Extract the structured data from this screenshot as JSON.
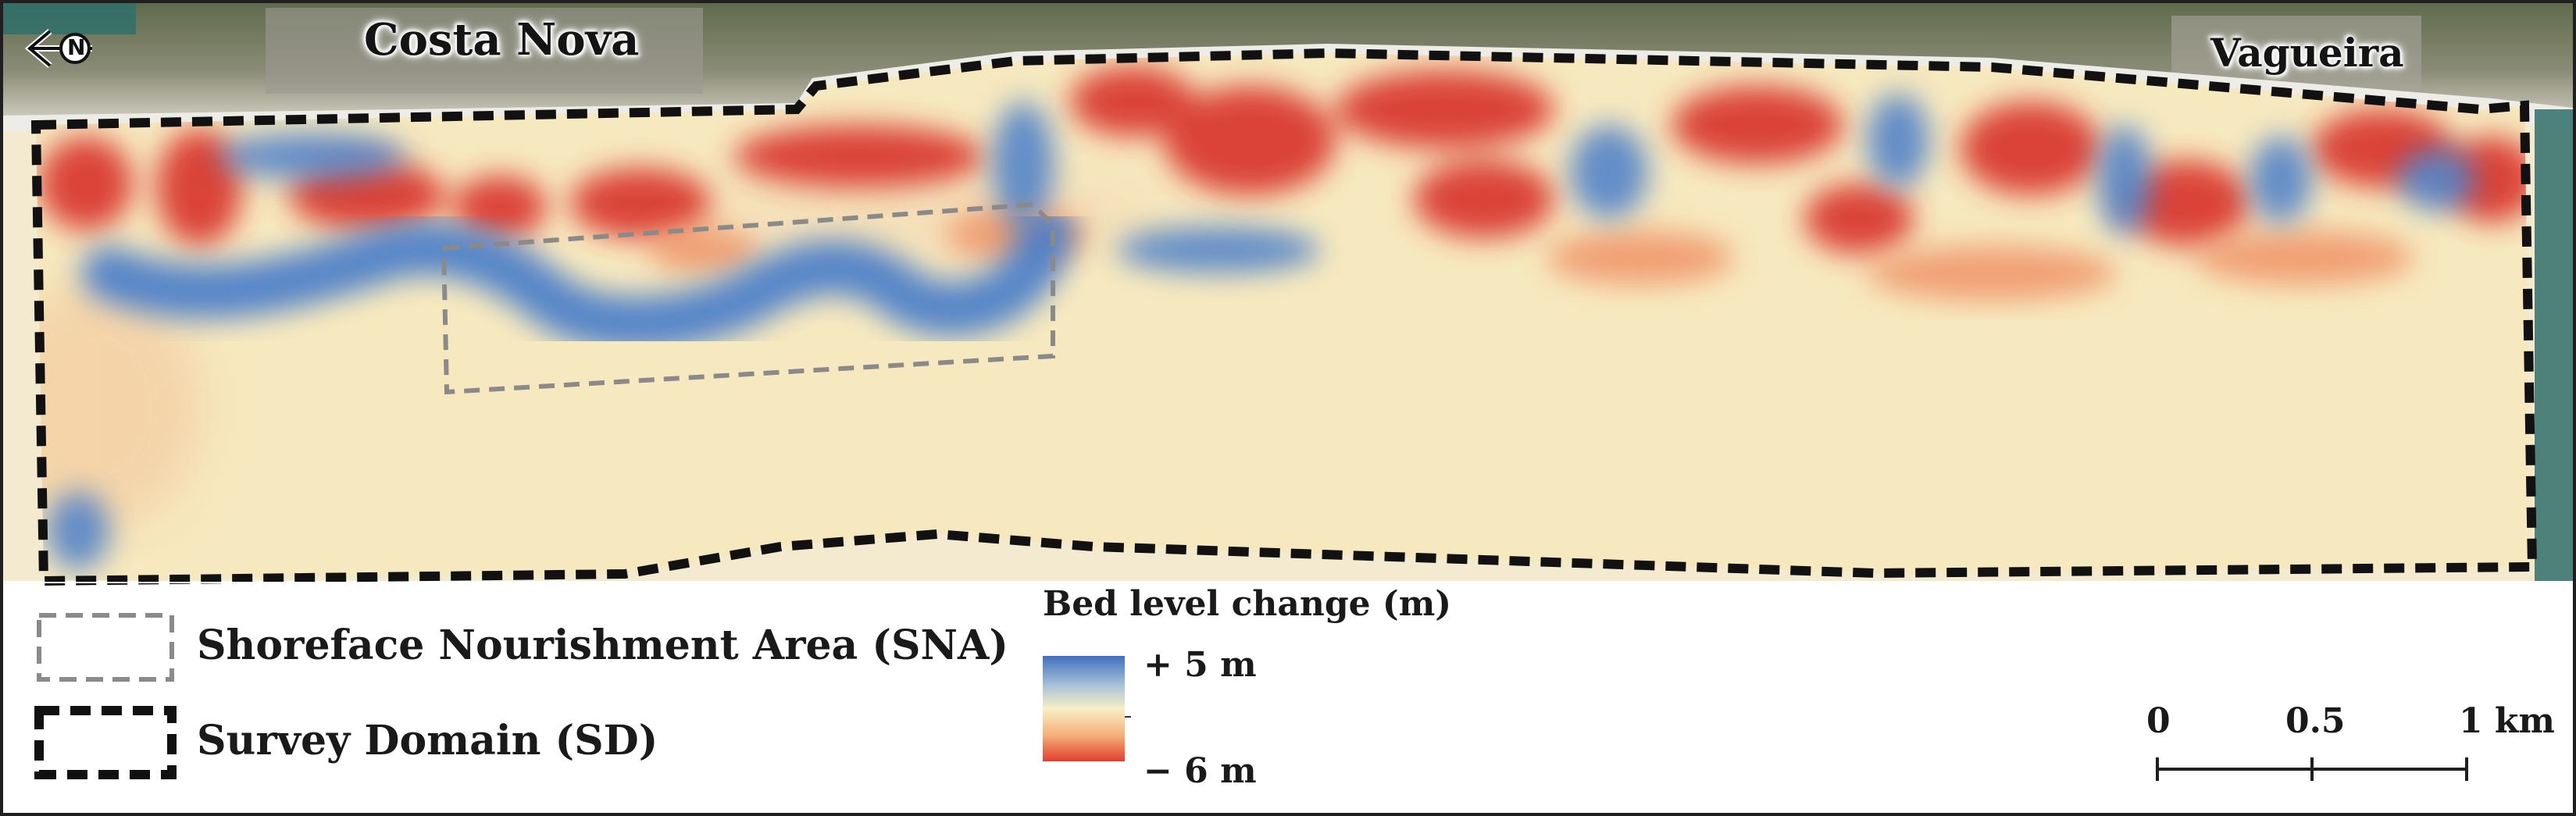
{
  "map": {
    "places": {
      "costa_nova": "Costa Nova",
      "vagueira": "Vagueira"
    },
    "north_arrow_letter": "N",
    "legend": {
      "sna_label": "Shoreface Nourishment Area (SNA)",
      "sd_label": "Survey Domain (SD)"
    },
    "colorbar": {
      "title": "Bed level change (m)",
      "max_label": "+ 5 m",
      "min_label": "− 6 m",
      "colors": [
        "#3f6fbf",
        "#a9c2d8",
        "#f7efc6",
        "#f5b07a",
        "#e23e2c"
      ],
      "max_value_m": 5,
      "min_value_m": -6
    },
    "scale_bar": {
      "ticks": [
        "0",
        "0.5",
        "1 km"
      ]
    },
    "palette": {
      "erosion_red": "#d8332b",
      "accretion_blue": "#4a7ec9",
      "neutral_sand": "#f8ebc0",
      "land_green": "#6f7d58",
      "beach_white": "#eceae3",
      "sea_teal": "#2f6e6a"
    }
  }
}
